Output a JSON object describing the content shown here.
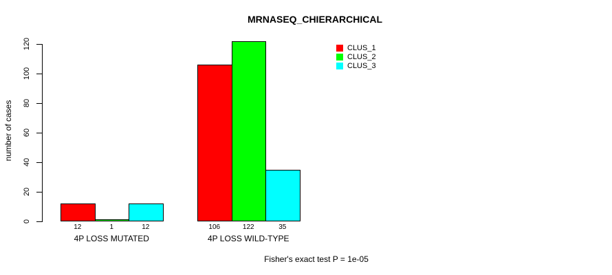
{
  "chart_data": {
    "type": "bar",
    "title": "MRNASEQ_CHIERARCHICAL",
    "ylabel": "number of cases",
    "xlabel": "",
    "annotation": "Fisher's exact test P = 1e-05",
    "categories": [
      "4P LOSS MUTATED",
      "4P LOSS WILD-TYPE"
    ],
    "series": [
      {
        "name": "CLUS_1",
        "color": "#ff0000",
        "values": [
          12,
          106
        ]
      },
      {
        "name": "CLUS_2",
        "color": "#00ff00",
        "values": [
          1,
          122
        ]
      },
      {
        "name": "CLUS_3",
        "color": "#00ffff",
        "values": [
          12,
          35
        ]
      }
    ],
    "ylim": [
      0,
      120
    ],
    "yticks": [
      0,
      20,
      40,
      60,
      80,
      100,
      120
    ],
    "grid": false,
    "legend_position": "top-right",
    "bar_value_labels_shown": true,
    "bar_border_color": "#000000",
    "background": "#ffffff"
  }
}
